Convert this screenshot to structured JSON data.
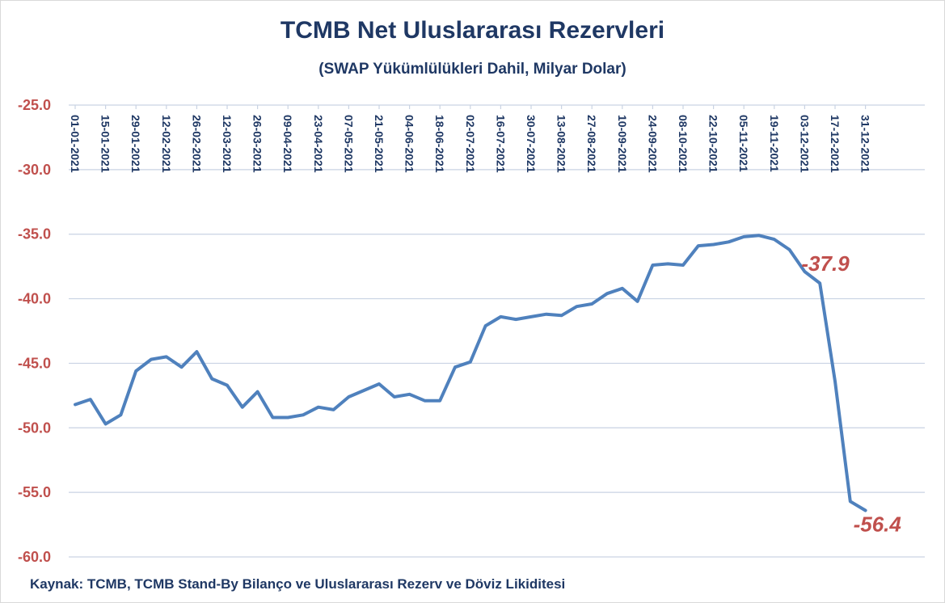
{
  "chart_data": {
    "type": "line",
    "title": "TCMB Net Uluslararası Rezervleri",
    "subtitle": "(SWAP Yükümlülükleri Dahil, Milyar Dolar)",
    "source": "Kaynak: TCMB,  TCMB Stand-By Bilanço ve Uluslararası Rezerv ve Döviz Likiditesi",
    "xlabel": "",
    "ylabel": "",
    "ylim": [
      -60,
      -25
    ],
    "yticks": [
      -25,
      -30,
      -35,
      -40,
      -45,
      -50,
      -55,
      -60
    ],
    "ytick_labels": [
      "-25.0",
      "-30.0",
      "-35.0",
      "-40.0",
      "-45.0",
      "-50.0",
      "-55.0",
      "-60.0"
    ],
    "grid": true,
    "x_axis_position": "top",
    "line_color": "#4f81bd",
    "ytick_color": "#c0504d",
    "text_color": "#1f3864",
    "x_tick_labels": [
      "01-01-2021",
      "15-01-2021",
      "29-01-2021",
      "12-02-2021",
      "26-02-2021",
      "12-03-2021",
      "26-03-2021",
      "09-04-2021",
      "23-04-2021",
      "07-05-2021",
      "21-05-2021",
      "04-06-2021",
      "18-06-2021",
      "02-07-2021",
      "16-07-2021",
      "30-07-2021",
      "13-08-2021",
      "27-08-2021",
      "10-09-2021",
      "24-09-2021",
      "08-10-2021",
      "22-10-2021",
      "05-11-2021",
      "19-11-2021",
      "03-12-2021",
      "17-12-2021",
      "31-12-2021"
    ],
    "series": [
      {
        "values": [
          -48.2,
          -47.8,
          -49.7,
          -49.0,
          -45.6,
          -44.7,
          -44.5,
          -45.3,
          -44.1,
          -46.2,
          -46.7,
          -48.4,
          -47.2,
          -49.2,
          -49.2,
          -49.0,
          -48.4,
          -48.6,
          -47.6,
          -47.1,
          -46.6,
          -47.6,
          -47.4,
          -47.9,
          -47.9,
          -45.3,
          -44.9,
          -42.1,
          -41.4,
          -41.6,
          -41.4,
          -41.2,
          -41.3,
          -40.6,
          -40.4,
          -39.6,
          -39.2,
          -40.2,
          -37.4,
          -37.3,
          -37.4,
          -35.9,
          -35.8,
          -35.6,
          -35.2,
          -35.1,
          -35.4,
          -36.2,
          -37.9,
          -38.8,
          -46.4,
          -55.7,
          -56.4
        ]
      }
    ],
    "data_labels": [
      {
        "index": 48,
        "text": "-37.9"
      },
      {
        "index": 52,
        "text": "-56.4"
      }
    ]
  }
}
